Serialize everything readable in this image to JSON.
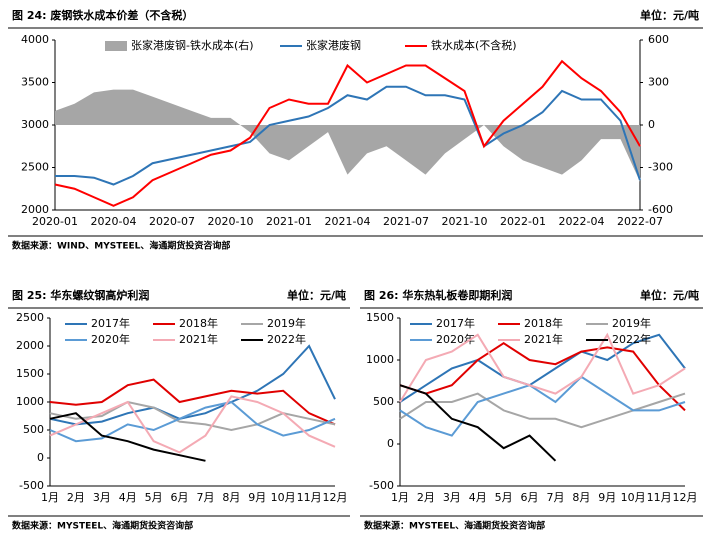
{
  "chart_data": [
    {
      "type": "line",
      "title": "图 24:  废钢铁水成本价差（不含税）",
      "unit": "单位：元/吨",
      "source": "数据来源：WIND、MYSTEEL、海通期货投资咨询部",
      "categories": [
        "2020-01",
        null,
        null,
        "2020-04",
        null,
        null,
        "2020-07",
        null,
        null,
        "2020-10",
        null,
        null,
        "2021-01",
        null,
        null,
        "2021-04",
        null,
        null,
        "2021-07",
        null,
        null,
        "2021-10",
        null,
        null,
        "2022-01",
        null,
        null,
        "2022-04",
        null,
        null,
        "2022-07"
      ],
      "ylim": [
        2000,
        4000
      ],
      "yticks": [
        2000,
        2500,
        3000,
        3500,
        4000
      ],
      "y2lim": [
        -600,
        600
      ],
      "y2ticks": [
        -600,
        -300,
        0,
        300,
        600
      ],
      "legend": "top",
      "series": [
        {
          "name": "张家港废钢-铁水成本(右)",
          "color": "#a6a6a6",
          "kind": "area",
          "axis": "y2",
          "values": [
            100,
            150,
            230,
            250,
            250,
            200,
            150,
            100,
            50,
            50,
            -50,
            -200,
            -250,
            -150,
            -50,
            -350,
            -200,
            -150,
            -250,
            -350,
            -200,
            -100,
            0,
            -150,
            -250,
            -300,
            -350,
            -250,
            -100,
            -100,
            -400
          ]
        },
        {
          "name": "张家港废钢",
          "color": "#2e75b6",
          "values": [
            2400,
            2400,
            2380,
            2300,
            2400,
            2550,
            2600,
            2650,
            2700,
            2750,
            2800,
            3000,
            3050,
            3100,
            3200,
            3350,
            3300,
            3450,
            3450,
            3350,
            3350,
            3300,
            2750,
            2900,
            3000,
            3150,
            3400,
            3300,
            3300,
            3050,
            2350
          ]
        },
        {
          "name": "铁水成本(不含税)",
          "color": "#ff0000",
          "values": [
            2300,
            2250,
            2150,
            2050,
            2150,
            2350,
            2450,
            2550,
            2650,
            2700,
            2850,
            3200,
            3300,
            3250,
            3250,
            3700,
            3500,
            3600,
            3700,
            3700,
            3550,
            3400,
            2750,
            3050,
            3250,
            3450,
            3750,
            3550,
            3400,
            3150,
            2750
          ]
        }
      ]
    },
    {
      "type": "line",
      "title": "图 25:  华东螺纹钢高炉利润",
      "unit": "单位：元/吨",
      "source": "数据来源：MYSTEEL、海通期货投资咨询部",
      "categories": [
        "1月",
        "2月",
        "3月",
        "4月",
        "5月",
        "6月",
        "7月",
        "8月",
        "9月",
        "10月",
        "11月",
        "12月"
      ],
      "ylim": [
        -500,
        2500
      ],
      "yticks": [
        -500,
        0,
        500,
        1000,
        1500,
        2000,
        2500
      ],
      "legend": "top",
      "series": [
        {
          "name": "2017年",
          "color": "#2e75b6",
          "values": [
            700,
            600,
            650,
            800,
            900,
            700,
            800,
            1000,
            1200,
            1500,
            2000,
            1050
          ]
        },
        {
          "name": "2018年",
          "color": "#e00000",
          "values": [
            1000,
            950,
            1000,
            1300,
            1400,
            1000,
            1100,
            1200,
            1150,
            1200,
            800,
            600
          ]
        },
        {
          "name": "2019年",
          "color": "#a6a6a6",
          "values": [
            800,
            700,
            750,
            1000,
            900,
            650,
            600,
            500,
            600,
            800,
            700,
            600
          ]
        },
        {
          "name": "2020年",
          "color": "#5b9bd5",
          "values": [
            500,
            300,
            350,
            600,
            500,
            700,
            900,
            1000,
            600,
            400,
            500,
            700
          ]
        },
        {
          "name": "2021年",
          "color": "#f4aab4",
          "values": [
            400,
            600,
            800,
            1000,
            300,
            100,
            400,
            1100,
            1000,
            800,
            400,
            200
          ]
        },
        {
          "name": "2022年",
          "color": "#000000",
          "values": [
            700,
            800,
            400,
            300,
            150,
            50,
            -50,
            null,
            null,
            null,
            null,
            null
          ]
        }
      ]
    },
    {
      "type": "line",
      "title": "图 26:  华东热轧板卷即期利润",
      "unit": "单位：元/吨",
      "source": "数据来源：MYSTEEL、海通期货投资咨询部",
      "categories": [
        "1月",
        "2月",
        "3月",
        "4月",
        "5月",
        "6月",
        "7月",
        "8月",
        "9月",
        "10月",
        "11月",
        "12月"
      ],
      "ylim": [
        -500,
        1500
      ],
      "yticks": [
        -500,
        0,
        500,
        1000,
        1500
      ],
      "legend": "top",
      "series": [
        {
          "name": "2017年",
          "color": "#2e75b6",
          "values": [
            500,
            700,
            900,
            1000,
            800,
            700,
            900,
            1100,
            1000,
            1200,
            1300,
            900
          ]
        },
        {
          "name": "2018年",
          "color": "#e00000",
          "values": [
            700,
            600,
            700,
            1000,
            1200,
            1000,
            950,
            1100,
            1150,
            1100,
            700,
            400
          ]
        },
        {
          "name": "2019年",
          "color": "#a6a6a6",
          "values": [
            300,
            500,
            500,
            600,
            400,
            300,
            300,
            200,
            300,
            400,
            500,
            600
          ]
        },
        {
          "name": "2020年",
          "color": "#5b9bd5",
          "values": [
            400,
            200,
            100,
            500,
            600,
            700,
            500,
            800,
            600,
            400,
            400,
            500
          ]
        },
        {
          "name": "2021年",
          "color": "#f4aab4",
          "values": [
            500,
            1000,
            1100,
            1300,
            800,
            700,
            600,
            800,
            1300,
            600,
            700,
            900
          ]
        },
        {
          "name": "2022年",
          "color": "#000000",
          "values": [
            700,
            600,
            300,
            200,
            -50,
            100,
            -200,
            null,
            null,
            null,
            null,
            null
          ]
        }
      ]
    }
  ]
}
